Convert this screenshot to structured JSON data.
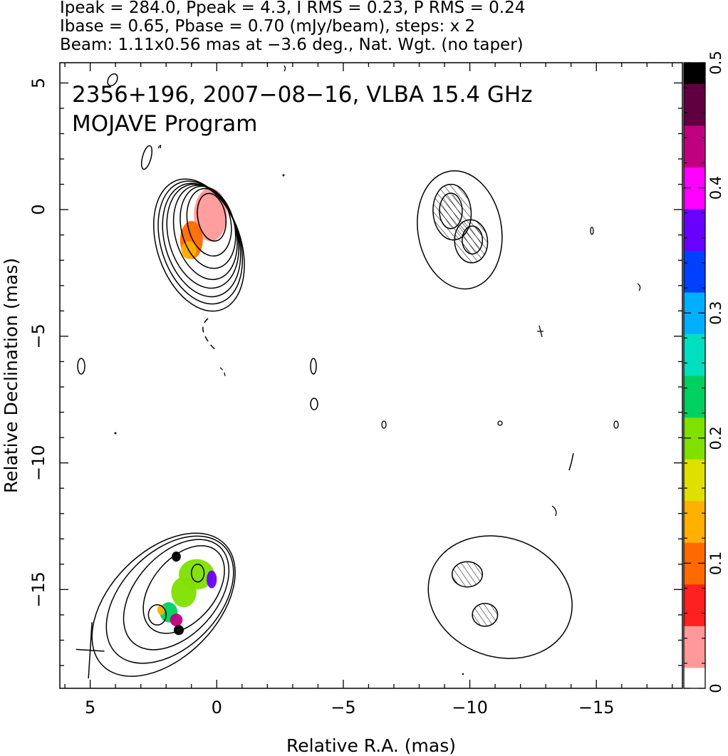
{
  "header": {
    "line1": "Ipeak = 284.0, Ppeak = 4.3, I RMS = 0.23, P RMS = 0.24",
    "line2": "Ibase = 0.65, Pbase = 0.70 (mJy/beam), steps: x 2",
    "line3": "Beam: 1.11x0.56 mas at −3.6 deg., Nat. Wgt. (no taper)"
  },
  "annotation": {
    "line1": "2356+196, 2007−08−16, VLBA 15.4 GHz",
    "line2": "MOJAVE Program"
  },
  "chart_data": {
    "type": "heatmap",
    "xlabel": "Relative R.A. (mas)",
    "ylabel": "Relative Declination (mas)",
    "xlim": [
      6.2,
      -18.4
    ],
    "ylim": [
      -18.9,
      5.8
    ],
    "x_ticks": [
      5,
      0,
      -5,
      -10,
      -15
    ],
    "x_tick_labels": [
      "5",
      "0",
      "−5",
      "−10",
      "−15"
    ],
    "y_ticks": [
      5,
      0,
      -5,
      -10,
      -15
    ],
    "y_tick_labels": [
      "5",
      "0",
      "−5",
      "−10",
      "−15"
    ],
    "colorbar": {
      "min": 0,
      "max": 0.5,
      "ticks": [
        0,
        0.1,
        0.2,
        0.3,
        0.4,
        0.5
      ],
      "tick_labels": [
        "0",
        "0.1",
        "0.2",
        "0.3",
        "0.4",
        "0.5"
      ],
      "colors": [
        "#ffffff",
        "#ff9999",
        "#ff2020",
        "#ff6a00",
        "#ffb000",
        "#e0e000",
        "#80e000",
        "#00d060",
        "#00e0c0",
        "#00b0ff",
        "#0040ff",
        "#6a00ff",
        "#ff00ff",
        "#c00080",
        "#600040",
        "#000000"
      ]
    },
    "panels": [
      {
        "name": "epoch-a-total-intensity",
        "center": [
          0.3,
          0
        ],
        "contours": [
          {
            "cx": 0.2,
            "cy": -0.3,
            "rx": 0.55,
            "ry": 0.95,
            "rot": 10
          },
          {
            "cx": 0.3,
            "cy": -0.5,
            "rx": 0.85,
            "ry": 1.35,
            "rot": 12
          },
          {
            "cx": 0.35,
            "cy": -0.7,
            "rx": 1.05,
            "ry": 1.65,
            "rot": 14
          },
          {
            "cx": 0.45,
            "cy": -0.9,
            "rx": 1.2,
            "ry": 1.9,
            "rot": 15
          },
          {
            "cx": 0.55,
            "cy": -1.05,
            "rx": 1.35,
            "ry": 2.1,
            "rot": 16
          },
          {
            "cx": 0.6,
            "cy": -1.2,
            "rx": 1.45,
            "ry": 2.3,
            "rot": 17
          },
          {
            "cx": 0.65,
            "cy": -1.3,
            "rx": 1.55,
            "ry": 2.5,
            "rot": 18
          },
          {
            "cx": 0.7,
            "cy": -1.4,
            "rx": 1.65,
            "ry": 2.7,
            "rot": 19
          }
        ],
        "fractional_pol_blobs": [
          {
            "cx": 0.25,
            "cy": -0.2,
            "rx": 0.65,
            "ry": 1.05,
            "value": 0.03
          },
          {
            "cx": 1.0,
            "cy": -1.2,
            "rx": 0.45,
            "ry": 0.75,
            "value": 0.09
          },
          {
            "cx": 1.1,
            "cy": -1.6,
            "rx": 0.3,
            "ry": 0.35,
            "value": 0.12
          }
        ]
      },
      {
        "name": "epoch-a-polarized-intensity",
        "center": [
          -9.3,
          0
        ],
        "contours": [
          {
            "cx": -9.25,
            "cy": -0.05,
            "rx": 0.45,
            "ry": 0.7,
            "rot": 0
          },
          {
            "cx": -10.1,
            "cy": -1.2,
            "rx": 0.4,
            "ry": 0.55,
            "rot": 0
          },
          {
            "cx": -9.3,
            "cy": -0.1,
            "rx": 0.75,
            "ry": 1.1,
            "rot": 5
          },
          {
            "cx": -10.05,
            "cy": -1.25,
            "rx": 0.65,
            "ry": 0.85,
            "rot": 5
          },
          {
            "cx": -9.6,
            "cy": -0.8,
            "rx": 1.65,
            "ry": 2.35,
            "rot": 10
          }
        ]
      },
      {
        "name": "epoch-b-total-intensity",
        "center": [
          -0.8,
          -15.1
        ],
        "contours": [
          {
            "cx": 0.75,
            "cy": -14.35,
            "rx": 0.25,
            "ry": 0.35,
            "rot": 0
          },
          {
            "cx": 2.35,
            "cy": -16.0,
            "rx": 0.35,
            "ry": 0.4,
            "rot": 0
          },
          {
            "cx": 1.3,
            "cy": -15.0,
            "rx": 1.25,
            "ry": 2.0,
            "rot": -40
          },
          {
            "cx": 1.6,
            "cy": -15.2,
            "rx": 1.6,
            "ry": 2.55,
            "rot": -42
          },
          {
            "cx": 1.85,
            "cy": -15.4,
            "rx": 1.9,
            "ry": 3.0,
            "rot": -45
          },
          {
            "cx": 2.1,
            "cy": -15.6,
            "rx": 2.1,
            "ry": 3.4,
            "rot": -45
          }
        ],
        "fractional_pol_blobs": [
          {
            "cx": 0.8,
            "cy": -14.4,
            "rx": 0.7,
            "ry": 0.6,
            "value": 0.21
          },
          {
            "cx": 1.3,
            "cy": -15.1,
            "rx": 0.5,
            "ry": 0.6,
            "value": 0.2
          },
          {
            "cx": 1.9,
            "cy": -15.9,
            "rx": 0.35,
            "ry": 0.4,
            "value": 0.22
          },
          {
            "cx": 2.2,
            "cy": -15.8,
            "rx": 0.15,
            "ry": 0.2,
            "value": 0.12
          },
          {
            "cx": 0.2,
            "cy": -14.6,
            "rx": 0.2,
            "ry": 0.35,
            "value": 0.36
          },
          {
            "cx": 1.6,
            "cy": -16.2,
            "rx": 0.25,
            "ry": 0.25,
            "value": 0.42
          },
          {
            "cx": 1.5,
            "cy": -16.6,
            "rx": 0.2,
            "ry": 0.2,
            "value": 0.5
          },
          {
            "cx": 1.6,
            "cy": -13.7,
            "rx": 0.18,
            "ry": 0.2,
            "value": 0.5
          }
        ]
      },
      {
        "name": "epoch-b-polarized-intensity",
        "center": [
          -10.6,
          -15.3
        ],
        "contours": [
          {
            "cx": -9.9,
            "cy": -14.4,
            "rx": 0.6,
            "ry": 0.5,
            "rot": 0
          },
          {
            "cx": -10.6,
            "cy": -16.0,
            "rx": 0.5,
            "ry": 0.45,
            "rot": 0
          },
          {
            "cx": -11.2,
            "cy": -15.3,
            "rx": 2.9,
            "ry": 2.35,
            "rot": -20
          }
        ]
      }
    ],
    "beam": {
      "x": 5.0,
      "y": -17.4,
      "major_mas": 1.11,
      "minor_mas": 0.56,
      "pa_deg": -3.6
    }
  }
}
